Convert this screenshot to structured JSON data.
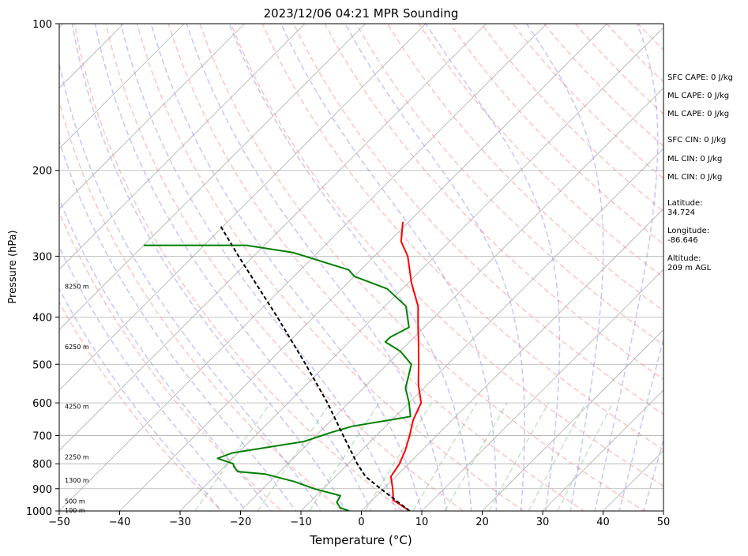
{
  "chart_data": {
    "type": "line",
    "title": "2023/12/06 04:21 MPR Sounding",
    "xlabel": "Temperature (°C)",
    "ylabel": "Pressure (hPa)",
    "xlim": [
      -50,
      50
    ],
    "ylim": [
      1000,
      100
    ],
    "y_scale": "log",
    "skew": "skew-T",
    "grid": true,
    "x_ticks": [
      -50,
      -40,
      -30,
      -20,
      -10,
      0,
      10,
      20,
      30,
      40,
      50
    ],
    "y_ticks": [
      100,
      200,
      300,
      400,
      500,
      600,
      700,
      800,
      900,
      1000
    ],
    "background_lines": {
      "dry_adiabats": "dashed red",
      "moist_adiabats": "dashed blue",
      "mixing_ratio": "dashed green",
      "isotherms": "solid gray"
    },
    "series": [
      {
        "color": "#ff0000",
        "role": "temperature",
        "points": [
          {
            "p": 1000,
            "t": 8.0
          },
          {
            "p": 950,
            "t": 3.5
          },
          {
            "p": 900,
            "t": 1.5
          },
          {
            "p": 850,
            "t": -0.8
          },
          {
            "p": 800,
            "t": -1.5
          },
          {
            "p": 750,
            "t": -2.8
          },
          {
            "p": 700,
            "t": -4.5
          },
          {
            "p": 650,
            "t": -6.5
          },
          {
            "p": 600,
            "t": -8.0
          },
          {
            "p": 550,
            "t": -11.5
          },
          {
            "p": 500,
            "t": -14.8
          },
          {
            "p": 450,
            "t": -18.5
          },
          {
            "p": 420,
            "t": -21.0
          },
          {
            "p": 380,
            "t": -24.5
          },
          {
            "p": 340,
            "t": -29.5
          },
          {
            "p": 300,
            "t": -34.5
          },
          {
            "p": 280,
            "t": -38.0
          },
          {
            "p": 255,
            "t": -41.0
          }
        ]
      },
      {
        "color": "#008000",
        "role": "dewpoint",
        "points": [
          {
            "p": 1000,
            "t": -2.0
          },
          {
            "p": 985,
            "t": -4.0
          },
          {
            "p": 960,
            "t": -5.5
          },
          {
            "p": 930,
            "t": -6.0
          },
          {
            "p": 900,
            "t": -11.5
          },
          {
            "p": 870,
            "t": -16.0
          },
          {
            "p": 840,
            "t": -22.0
          },
          {
            "p": 830,
            "t": -27.0
          },
          {
            "p": 810,
            "t": -28.5
          },
          {
            "p": 800,
            "t": -29.0
          },
          {
            "p": 780,
            "t": -32.5
          },
          {
            "p": 760,
            "t": -31.0
          },
          {
            "p": 720,
            "t": -21.0
          },
          {
            "p": 690,
            "t": -18.0
          },
          {
            "p": 670,
            "t": -15.5
          },
          {
            "p": 640,
            "t": -7.5
          },
          {
            "p": 600,
            "t": -10.0
          },
          {
            "p": 560,
            "t": -13.0
          },
          {
            "p": 500,
            "t": -16.0
          },
          {
            "p": 470,
            "t": -20.0
          },
          {
            "p": 450,
            "t": -24.0
          },
          {
            "p": 440,
            "t": -24.0
          },
          {
            "p": 420,
            "t": -22.5
          },
          {
            "p": 380,
            "t": -26.5
          },
          {
            "p": 350,
            "t": -32.5
          },
          {
            "p": 330,
            "t": -40.0
          },
          {
            "p": 320,
            "t": -42.0
          },
          {
            "p": 295,
            "t": -54.0
          },
          {
            "p": 285,
            "t": -63.0
          },
          {
            "p": 285,
            "t": -80.0
          }
        ]
      },
      {
        "color": "#000000",
        "role": "parcel",
        "dashed": true,
        "points": [
          {
            "p": 1000,
            "t": 8.0
          },
          {
            "p": 900,
            "t": -0.5
          },
          {
            "p": 850,
            "t": -5.0
          },
          {
            "p": 800,
            "t": -8.5
          },
          {
            "p": 700,
            "t": -15.5
          },
          {
            "p": 600,
            "t": -23.5
          },
          {
            "p": 500,
            "t": -33.5
          },
          {
            "p": 400,
            "t": -46.0
          },
          {
            "p": 300,
            "t": -62.5
          },
          {
            "p": 260,
            "t": -70.5
          }
        ]
      }
    ],
    "height_labels": [
      {
        "p": 1000,
        "label": "100 m"
      },
      {
        "p": 958,
        "label": "500 m"
      },
      {
        "p": 868,
        "label": "1300 m"
      },
      {
        "p": 778,
        "label": "2250 m"
      },
      {
        "p": 612,
        "label": "4250 m"
      },
      {
        "p": 462,
        "label": "6250 m"
      },
      {
        "p": 347,
        "label": "8250 m"
      }
    ],
    "annotations": [
      "SFC CAPE: 0 J/kg",
      "ML CAPE: 0 J/kg",
      "ML CAPE: 0 J/kg",
      "SFC CIN: 0 J/kg",
      "ML CIN: 0 J/kg",
      "ML CIN: 0 J/kg",
      "Latitude:",
      "34.724",
      "Longitude:",
      "-86.646",
      "Altitude:",
      "209 m AGL"
    ]
  }
}
